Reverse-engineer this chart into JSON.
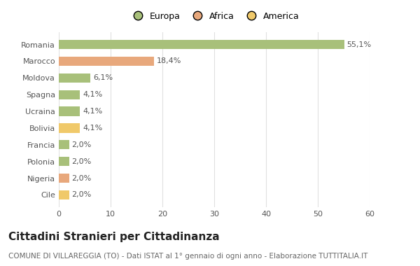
{
  "categories": [
    "Romania",
    "Marocco",
    "Moldova",
    "Spagna",
    "Ucraina",
    "Bolivia",
    "Francia",
    "Polonia",
    "Nigeria",
    "Cile"
  ],
  "values": [
    55.1,
    18.4,
    6.1,
    4.1,
    4.1,
    4.1,
    2.0,
    2.0,
    2.0,
    2.0
  ],
  "labels": [
    "55,1%",
    "18,4%",
    "6,1%",
    "4,1%",
    "4,1%",
    "4,1%",
    "2,0%",
    "2,0%",
    "2,0%",
    "2,0%"
  ],
  "colors": [
    "#a8c07a",
    "#e8a87c",
    "#a8c07a",
    "#a8c07a",
    "#a8c07a",
    "#f0c96a",
    "#a8c07a",
    "#a8c07a",
    "#e8a87c",
    "#f0c96a"
  ],
  "legend": [
    {
      "label": "Europa",
      "color": "#a8c07a"
    },
    {
      "label": "Africa",
      "color": "#e8a87c"
    },
    {
      "label": "America",
      "color": "#f0c96a"
    }
  ],
  "title": "Cittadini Stranieri per Cittadinanza",
  "subtitle": "COMUNE DI VILLAREGGIA (TO) - Dati ISTAT al 1° gennaio di ogni anno - Elaborazione TUTTITALIA.IT",
  "xlim": [
    0,
    60
  ],
  "xticks": [
    0,
    10,
    20,
    30,
    40,
    50,
    60
  ],
  "background_color": "#ffffff",
  "grid_color": "#e0e0e0",
  "bar_height": 0.55,
  "title_fontsize": 11,
  "subtitle_fontsize": 7.5,
  "label_fontsize": 8,
  "tick_fontsize": 8
}
